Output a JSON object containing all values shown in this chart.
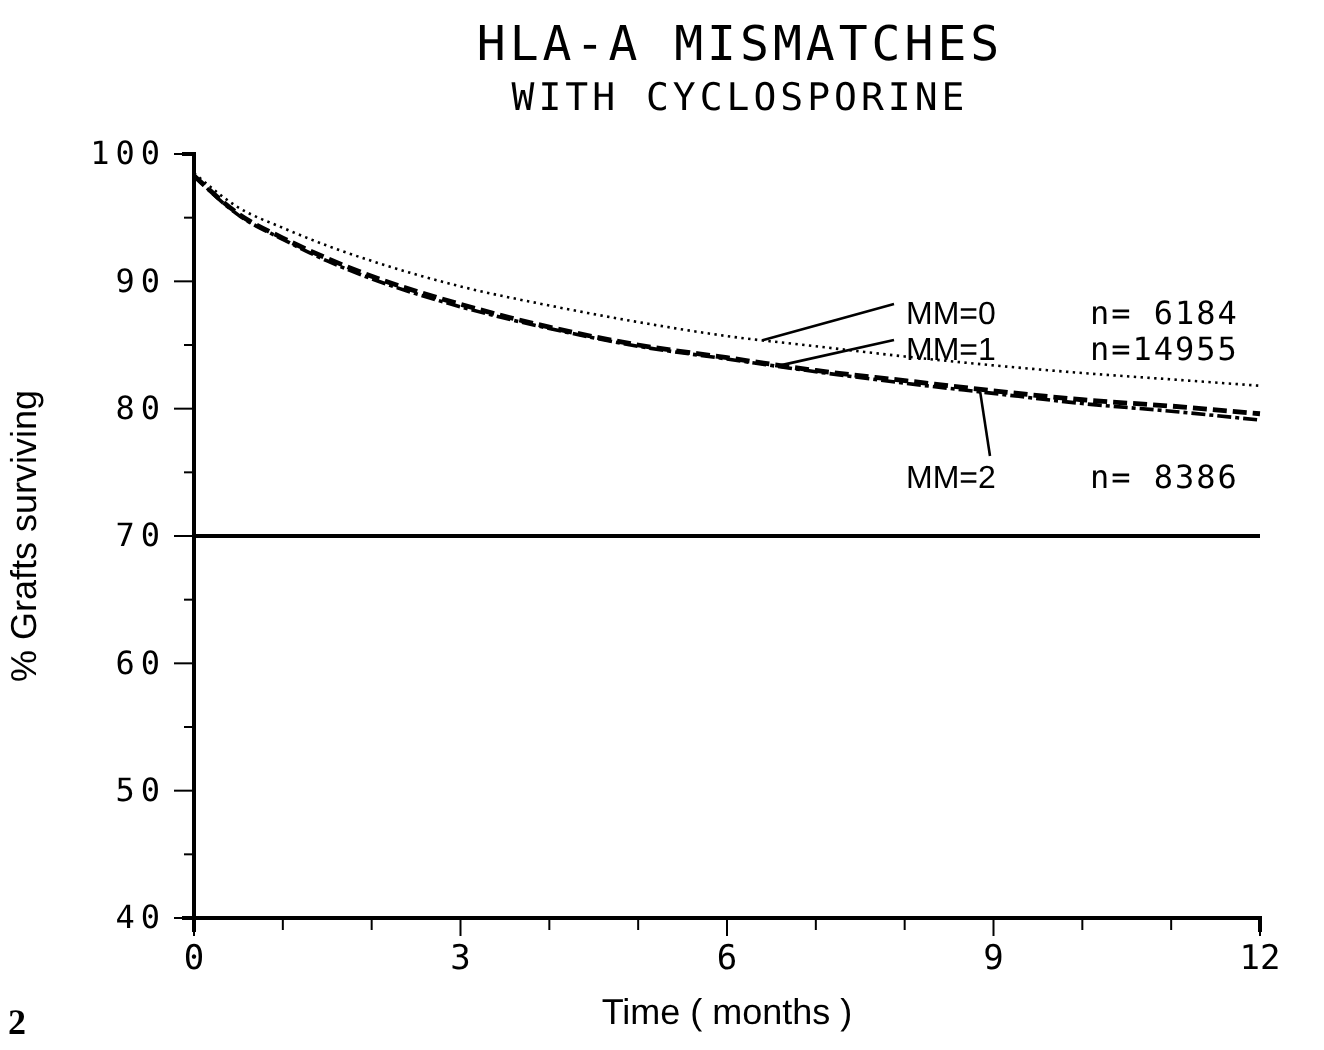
{
  "chart_data": {
    "type": "line",
    "title": "HLA-A MISMATCHES",
    "subtitle": "WITH CYCLOSPORINE",
    "xlabel": "Time ( months )",
    "ylabel": "% Grafts surviving",
    "x": [
      0,
      0.5,
      1,
      1.5,
      2,
      3,
      4,
      5,
      6,
      7,
      8,
      9,
      10,
      11,
      12
    ],
    "series": [
      {
        "name": "MM=0",
        "color": "#000000",
        "line_style": "dotted",
        "values": [
          98.5,
          95.8,
          94.2,
          92.8,
          91.6,
          89.6,
          88.1,
          86.8,
          85.7,
          84.9,
          84.1,
          83.4,
          82.8,
          82.3,
          81.8
        ]
      },
      {
        "name": "MM=1",
        "color": "#000000",
        "line_style": "dashed",
        "values": [
          98.3,
          95.3,
          93.4,
          91.8,
          90.4,
          88.2,
          86.4,
          85.0,
          84.0,
          83.0,
          82.2,
          81.4,
          80.7,
          80.2,
          79.6
        ]
      },
      {
        "name": "MM=2",
        "color": "#000000",
        "line_style": "dashed",
        "values": [
          98.3,
          95.2,
          93.3,
          91.6,
          90.2,
          88.0,
          86.3,
          84.9,
          83.9,
          82.9,
          82.0,
          81.2,
          80.4,
          79.8,
          79.1
        ]
      }
    ],
    "annotations": [
      "n= 6184",
      "n=14955",
      "n= 8386",
      "2"
    ],
    "xlim": [
      0,
      12
    ],
    "xticks": [
      0,
      {
        "value": 1,
        "label": null
      },
      {
        "value": 2,
        "label": null
      },
      3,
      {
        "value": 4,
        "label": null
      },
      {
        "value": 5,
        "label": null
      },
      6,
      {
        "value": 7,
        "label": null
      },
      {
        "value": 8,
        "label": null
      },
      9,
      {
        "value": 10,
        "label": null
      },
      {
        "value": 11,
        "label": null
      },
      12
    ],
    "ylim": [
      40,
      100
    ],
    "yticks": [
      40,
      {
        "value": 45,
        "label": null
      },
      50,
      {
        "value": 55,
        "label": null
      },
      60,
      {
        "value": 65,
        "label": null
      },
      70,
      {
        "value": 75,
        "label": null
      },
      80,
      {
        "value": 85,
        "label": null
      },
      90,
      {
        "value": 95,
        "label": null
      },
      100
    ],
    "ref_lines": [
      {
        "axis": "y",
        "value": 70,
        "color": "#000000"
      }
    ],
    "grid": false,
    "legend": "top right",
    "marker": "none"
  }
}
